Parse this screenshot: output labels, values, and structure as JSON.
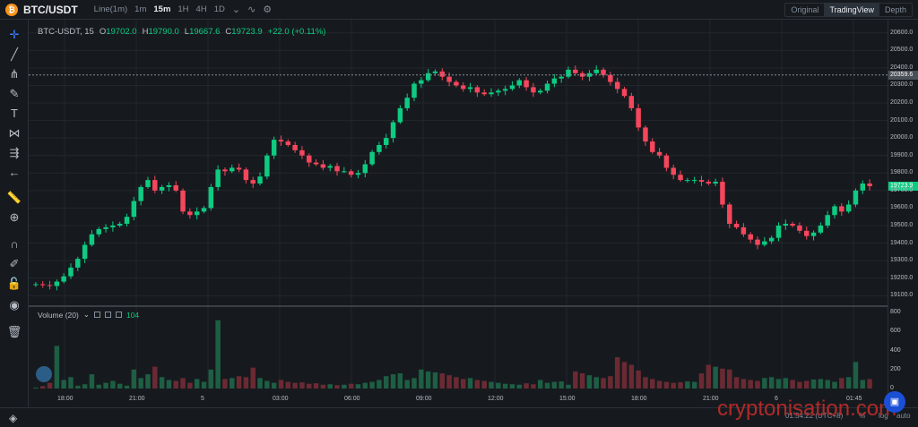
{
  "header": {
    "coin_symbol": "₿",
    "pair": "BTC/USDT",
    "intervals": [
      "Line(1m)",
      "1m",
      "15m",
      "1H",
      "4H",
      "1D"
    ],
    "active_interval": "15m",
    "views": [
      "Original",
      "TradingView",
      "Depth"
    ],
    "active_view": "TradingView"
  },
  "legend": {
    "symbol": "BTC-USDT, 15",
    "open_label": "O",
    "open": "19702.0",
    "high_label": "H",
    "high": "19790.0",
    "low_label": "L",
    "low": "19667.6",
    "close_label": "C",
    "close": "19723.9",
    "change": "+22.0 (+0.11%)"
  },
  "volume_legend": {
    "label": "Volume (20)",
    "value": "104"
  },
  "price_tags": {
    "high_line": "20359.6",
    "last": "19723.9"
  },
  "bottom": {
    "clock": "01:54:22 (UTC+8)",
    "pct": "%",
    "log": "log",
    "auto": "auto"
  },
  "watermark": "cryptonisation.com",
  "colors": {
    "up": "#0ecb81",
    "down": "#f6465d",
    "up_vol": "#1e5e44",
    "down_vol": "#6b2a33",
    "bg": "#161a1e",
    "grid": "#23272d"
  },
  "chart_data": {
    "type": "candlestick",
    "price_ylim": [
      19050,
      20650
    ],
    "price_ticks": [
      "20600.0",
      "20500.0",
      "20400.0",
      "20300.0",
      "20200.0",
      "20100.0",
      "20000.0",
      "19900.0",
      "19800.0",
      "19700.0",
      "19600.0",
      "19500.0",
      "19400.0",
      "19300.0",
      "19200.0",
      "19100.0"
    ],
    "volume_ticks": [
      "800",
      "600",
      "400",
      "200",
      "0"
    ],
    "volume_ylim": [
      0,
      850
    ],
    "time_labels": [
      "18:00",
      "21:00",
      "5",
      "03:00",
      "06:00",
      "09:00",
      "12:00",
      "15:00",
      "18:00",
      "21:00",
      "6",
      "01:45"
    ],
    "closes": [
      19165,
      19160,
      19155,
      19180,
      19210,
      19260,
      19310,
      19390,
      19450,
      19480,
      19490,
      19500,
      19510,
      19550,
      19640,
      19720,
      19760,
      19700,
      19720,
      19730,
      19700,
      19580,
      19560,
      19580,
      19600,
      19720,
      19820,
      19810,
      19830,
      19820,
      19760,
      19740,
      19780,
      19900,
      19990,
      19980,
      19960,
      19930,
      19900,
      19860,
      19850,
      19830,
      19840,
      19810,
      19810,
      19790,
      19800,
      19850,
      19920,
      19960,
      20000,
      20090,
      20170,
      20230,
      20310,
      20330,
      20370,
      20380,
      20350,
      20320,
      20300,
      20280,
      20290,
      20260,
      20250,
      20260,
      20270,
      20280,
      20300,
      20330,
      20290,
      20260,
      20270,
      20310,
      20340,
      20350,
      20390,
      20370,
      20350,
      20370,
      20390,
      20360,
      20320,
      20280,
      20240,
      20170,
      20060,
      19980,
      19920,
      19900,
      19830,
      19790,
      19760,
      19760,
      19760,
      19750,
      19740,
      19750,
      19620,
      19510,
      19490,
      19450,
      19420,
      19390,
      19410,
      19430,
      19500,
      19510,
      19500,
      19470,
      19440,
      19460,
      19500,
      19560,
      19610,
      19580,
      19620,
      19700,
      19740,
      19725
    ],
    "volumes": [
      10,
      25,
      60,
      450,
      90,
      120,
      30,
      45,
      150,
      40,
      60,
      80,
      50,
      30,
      200,
      110,
      150,
      230,
      120,
      90,
      80,
      110,
      60,
      100,
      70,
      200,
      720,
      100,
      110,
      130,
      120,
      220,
      110,
      80,
      60,
      90,
      70,
      60,
      65,
      50,
      55,
      40,
      45,
      35,
      40,
      50,
      45,
      60,
      70,
      90,
      130,
      150,
      160,
      90,
      110,
      200,
      180,
      170,
      160,
      140,
      120,
      100,
      110,
      90,
      80,
      70,
      60,
      50,
      45,
      40,
      55,
      45,
      90,
      60,
      70,
      75,
      40,
      180,
      160,
      140,
      120,
      110,
      130,
      330,
      280,
      250,
      190,
      120,
      100,
      80,
      70,
      60,
      65,
      75,
      70,
      160,
      250,
      230,
      210,
      200,
      120,
      100,
      90,
      80,
      110,
      120,
      100,
      110,
      90,
      70,
      80,
      95,
      100,
      90,
      70,
      110,
      120,
      280,
      90,
      100
    ]
  }
}
